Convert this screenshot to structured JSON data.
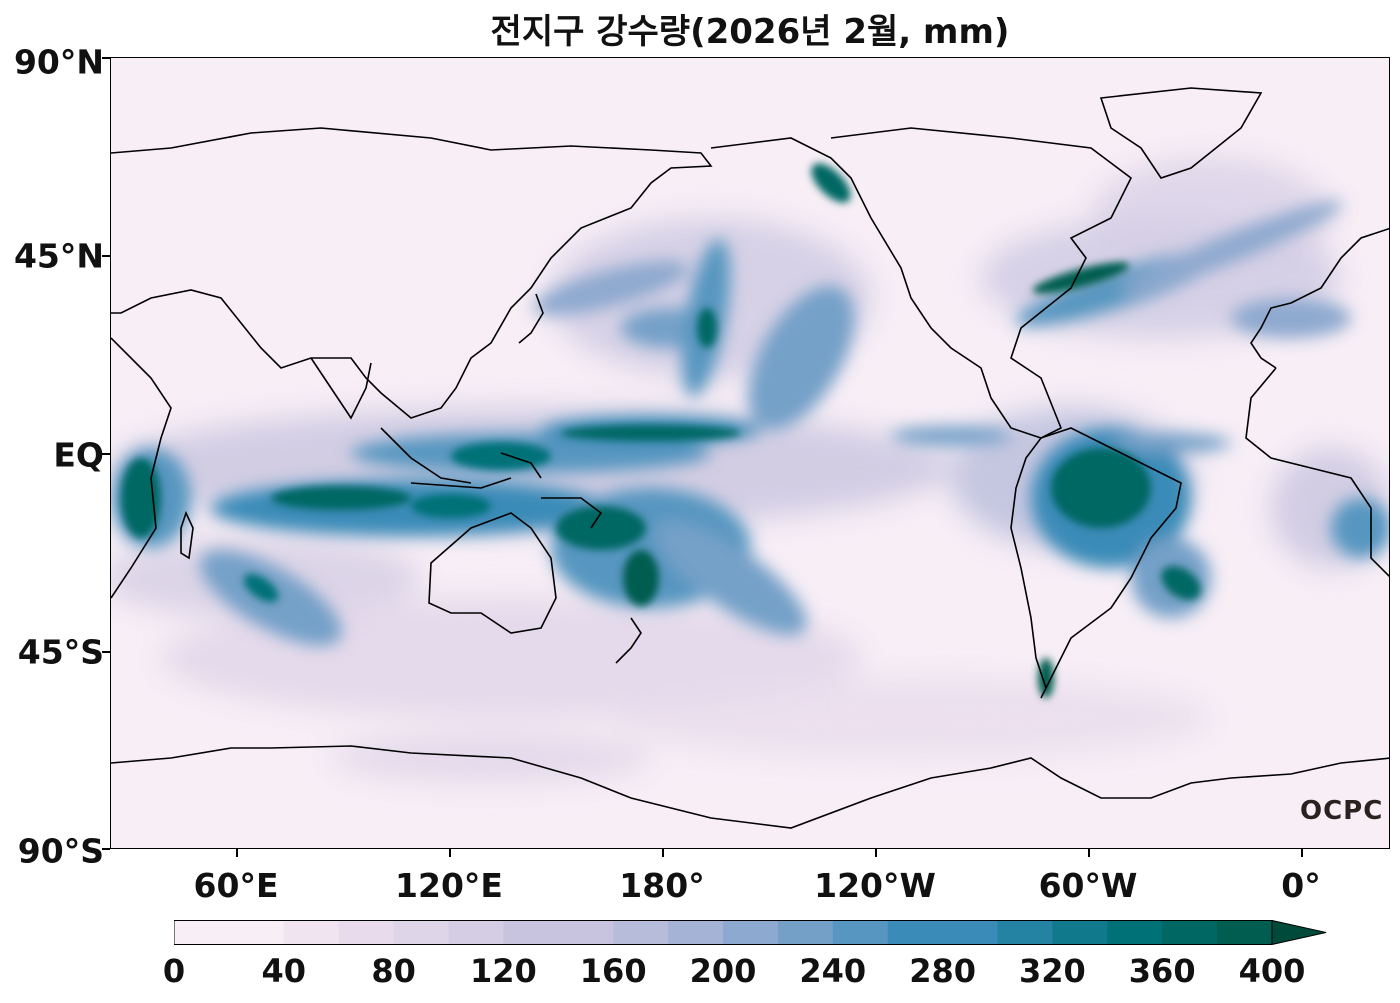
{
  "title": "전지구 강수량(2026년 2월, mm)",
  "lat_labels": [
    "90°N",
    "45°N",
    "EQ",
    "45°S",
    "90°S"
  ],
  "lon_labels": [
    "60°E",
    "120°E",
    "180°",
    "120°W",
    "60°W",
    "0°"
  ],
  "logo": "OCPC",
  "colorbar": {
    "ticks": [
      "0",
      "40",
      "80",
      "120",
      "160",
      "200",
      "240",
      "280",
      "320",
      "360",
      "400"
    ],
    "colors": [
      "#f7eef6",
      "#efe4f0",
      "#e8dcec",
      "#dfd5e8",
      "#d4cde4",
      "#c8c4df",
      "#b8bcdb",
      "#a5b3d6",
      "#8ea9cf",
      "#74a0c8",
      "#5696c0",
      "#3a8bb8",
      "#2483a3",
      "#107a8c",
      "#007177",
      "#006763",
      "#005d50",
      "#004a3c"
    ],
    "extend": "max"
  },
  "legend": {
    "low_color": "#f7eef6",
    "high_color": "#005d50"
  }
}
